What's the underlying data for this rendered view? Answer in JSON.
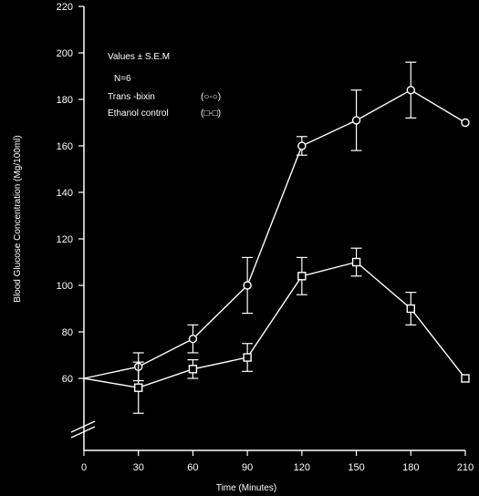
{
  "chart_data": {
    "type": "line",
    "title": "",
    "xlabel": "Time (Minutes)",
    "ylabel": "Blood Glucose Concentration (Mg/100ml)",
    "x_ticks": [
      0,
      30,
      60,
      90,
      120,
      150,
      180,
      210
    ],
    "x_tick_labels": [
      "0",
      "30",
      "60",
      "90",
      "120",
      "150",
      "180",
      "210"
    ],
    "xlim": [
      0,
      210
    ],
    "y_ticks": [
      60,
      80,
      100,
      120,
      140,
      160,
      180,
      200,
      220
    ],
    "y_tick_labels": [
      "60",
      "80",
      "100",
      "120",
      "140",
      "160",
      "180",
      "200",
      "220"
    ],
    "ylim": [
      60,
      220
    ],
    "y_axis_break": true,
    "grid": false,
    "background": "#000000",
    "foreground": "#ffffff",
    "annotations": [
      "Values ± S.E.M",
      "N=6"
    ],
    "legend": [
      {
        "label": "Trans -bixin",
        "symbol": "(○-○)"
      },
      {
        "label": "Ethanol control",
        "symbol": "(□-□)"
      }
    ],
    "series": [
      {
        "name": "Trans -bixin",
        "marker": "circle",
        "x": [
          0,
          30,
          60,
          90,
          120,
          150,
          180,
          210
        ],
        "y": [
          60,
          65,
          77,
          100,
          160,
          171,
          184,
          170
        ],
        "err": [
          0,
          6,
          6,
          12,
          4,
          13,
          12,
          0
        ]
      },
      {
        "name": "Ethanol control",
        "marker": "square",
        "x": [
          0,
          30,
          60,
          90,
          120,
          150,
          180,
          210
        ],
        "y": [
          60,
          56,
          64,
          69,
          104,
          110,
          90,
          60
        ],
        "err": [
          0,
          11,
          4,
          6,
          8,
          6,
          7,
          0
        ]
      }
    ]
  }
}
